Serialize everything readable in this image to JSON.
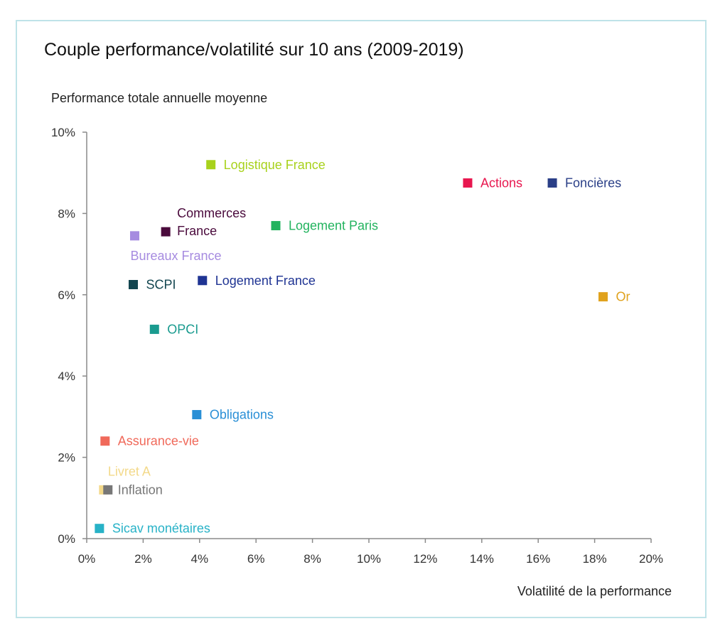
{
  "chart_data": {
    "type": "scatter",
    "title": "Couple performance/volatilité sur 10 ans (2009-2019)",
    "ylabel": "Performance totale annuelle moyenne",
    "xlabel": "Volatilité de la performance",
    "xlim": [
      0,
      20
    ],
    "ylim": [
      0,
      10
    ],
    "x_ticks": [
      0,
      2,
      4,
      6,
      8,
      10,
      12,
      14,
      16,
      18,
      20
    ],
    "y_ticks": [
      0,
      2,
      4,
      6,
      8,
      10
    ],
    "x_tick_labels": [
      "0%",
      "2%",
      "4%",
      "6%",
      "8%",
      "10%",
      "12%",
      "14%",
      "16%",
      "18%",
      "20%"
    ],
    "y_tick_labels": [
      "0%",
      "2%",
      "4%",
      "6%",
      "8%",
      "10%"
    ],
    "grid": false,
    "points": [
      {
        "label": "Logistique France",
        "x": 4.4,
        "y": 9.2,
        "color": "#a8d21c"
      },
      {
        "label": "Actions",
        "x": 13.5,
        "y": 8.75,
        "color": "#e8174f"
      },
      {
        "label": "Foncières",
        "x": 16.5,
        "y": 8.75,
        "color": "#2a3f87"
      },
      {
        "label": "Commerces France",
        "x": 2.8,
        "y": 7.55,
        "color": "#4a0a3c"
      },
      {
        "label": "Logement Paris",
        "x": 6.7,
        "y": 7.7,
        "color": "#22b35e"
      },
      {
        "label": "Bureaux France",
        "x": 1.7,
        "y": 7.45,
        "color": "#a68be0"
      },
      {
        "label": "SCPI",
        "x": 1.65,
        "y": 6.25,
        "color": "#134650"
      },
      {
        "label": "Logement France",
        "x": 4.1,
        "y": 6.35,
        "color": "#1f3493"
      },
      {
        "label": "Or",
        "x": 18.3,
        "y": 5.95,
        "color": "#e0a21d"
      },
      {
        "label": "OPCI",
        "x": 2.4,
        "y": 5.15,
        "color": "#1a9b8f"
      },
      {
        "label": "Obligations",
        "x": 3.9,
        "y": 3.05,
        "color": "#2a8fd6"
      },
      {
        "label": "Assurance-vie",
        "x": 0.65,
        "y": 2.4,
        "color": "#f0695a"
      },
      {
        "label": "Livret A",
        "x": 0.6,
        "y": 1.2,
        "color": "#f3d98a"
      },
      {
        "label": "Inflation",
        "x": 0.75,
        "y": 1.2,
        "color": "#777777"
      },
      {
        "label": "Sicav monétaires",
        "x": 0.45,
        "y": 0.25,
        "color": "#27b2c7"
      }
    ]
  }
}
